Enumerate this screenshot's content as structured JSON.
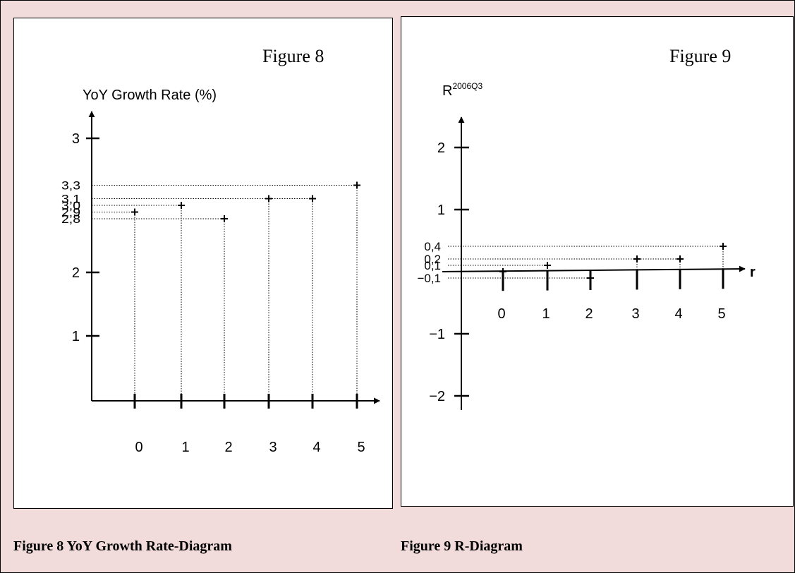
{
  "chart_data": [
    {
      "type": "scatter",
      "figure_label": "Figure 8",
      "ylabel": "YoY Growth Rate (%)",
      "x": [
        0,
        1,
        2,
        3,
        4,
        5
      ],
      "y": [
        2.9,
        3.0,
        2.8,
        3.1,
        3.1,
        3.3
      ],
      "x_ticks": [
        "0",
        "1",
        "2",
        "3",
        "4",
        "5"
      ],
      "y_ticks": [
        "1",
        "2",
        "3"
      ],
      "y_value_labels": [
        "3,3",
        "3,1",
        "3,0",
        "2,9",
        "2,8"
      ],
      "ylim": [
        0.1,
        3.7
      ],
      "caption": "Figure 8 YoY Growth Rate-Diagram"
    },
    {
      "type": "scatter",
      "figure_label": "Figure 9",
      "ylabel_base": "R",
      "ylabel_superscript": "2006Q3",
      "xlabel": "r",
      "x": [
        0,
        1,
        2,
        3,
        4,
        5
      ],
      "y": [
        0.0,
        0.1,
        -0.1,
        0.2,
        0.2,
        0.4
      ],
      "x_ticks": [
        "0",
        "1",
        "2",
        "3",
        "4",
        "5"
      ],
      "y_ticks": [
        "2",
        "1",
        "−1",
        "−2"
      ],
      "y_value_labels": [
        "0,4",
        "0,2",
        "0,1",
        "−0,1"
      ],
      "ylim": [
        -2.3,
        2.7
      ],
      "caption": "Figure 9 R-Diagram"
    }
  ]
}
